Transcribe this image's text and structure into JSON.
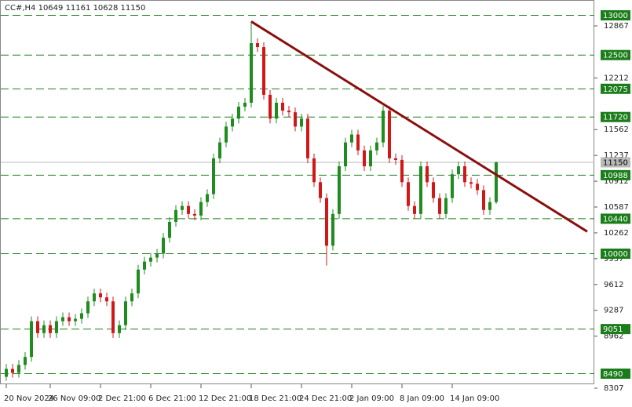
{
  "chart_data": {
    "type": "candlestick",
    "title": "CC#,H4 10649 11161 10628 11150",
    "categories": [
      "20 Nov 2024",
      null,
      null,
      null,
      null,
      null,
      null,
      "26 Nov 09:00",
      null,
      null,
      null,
      null,
      null,
      null,
      null,
      "2 Dec 21:00",
      null,
      null,
      null,
      null,
      null,
      null,
      null,
      "6 Dec 21:00",
      null,
      null,
      null,
      null,
      null,
      null,
      null,
      "12 Dec 21:00",
      null,
      null,
      null,
      null,
      null,
      null,
      null,
      "18 Dec 21:00",
      null,
      null,
      null,
      null,
      null,
      null,
      null,
      "24 Dec 21:00",
      null,
      null,
      null,
      null,
      null,
      null,
      null,
      "2 Jan 09:00",
      null,
      null,
      null,
      null,
      null,
      null,
      null,
      "8 Jan 09:00",
      null,
      null,
      null,
      null,
      null,
      null,
      null,
      "14 Jan 09:00",
      null,
      null,
      null,
      null,
      null,
      null,
      null
    ],
    "open": [
      8450,
      8550,
      8500,
      8600,
      8700,
      9150,
      9000,
      9100,
      9000,
      9150,
      9200,
      9150,
      9180,
      9250,
      9400,
      9500,
      9450,
      9400,
      9000,
      9100,
      9400,
      9500,
      9800,
      9900,
      9950,
      10000,
      10200,
      10400,
      10550,
      10600,
      10500,
      10480,
      10650,
      10750,
      11200,
      11400,
      11600,
      11700,
      11850,
      11900,
      12650,
      12600,
      12000,
      11700,
      11900,
      11800,
      11780,
      11600,
      11700,
      11200,
      10900,
      10700,
      10100,
      10500,
      11100,
      11400,
      11500,
      11300,
      11100,
      11300,
      11400,
      11800,
      11200,
      11180,
      10900,
      10600,
      10500,
      11100,
      10900,
      10700,
      10500,
      10700,
      11000,
      11100,
      10900,
      10880,
      10800,
      10550,
      10649
    ],
    "high": [
      8610,
      8610,
      8660,
      8760,
      9210,
      9210,
      9160,
      9160,
      9210,
      9260,
      9260,
      9240,
      9310,
      9460,
      9560,
      9560,
      9510,
      9460,
      9160,
      9460,
      9560,
      9860,
      9960,
      10010,
      10060,
      10260,
      10460,
      10610,
      10660,
      10660,
      10560,
      10710,
      10810,
      11260,
      11460,
      11660,
      11760,
      11910,
      11960,
      12922,
      12710,
      12660,
      12060,
      11960,
      11960,
      11860,
      11840,
      11760,
      11760,
      11260,
      10960,
      10760,
      10560,
      11160,
      11460,
      11560,
      11560,
      11360,
      11360,
      11460,
      11860,
      11860,
      11260,
      11240,
      10960,
      10660,
      11160,
      11160,
      10960,
      10760,
      10760,
      11060,
      11160,
      11160,
      10960,
      10940,
      10860,
      10710,
      11161
    ],
    "low": [
      8400,
      8440,
      8440,
      8540,
      8640,
      8940,
      8940,
      8940,
      8940,
      9090,
      9090,
      9090,
      9120,
      9190,
      9340,
      9390,
      9340,
      8940,
      8940,
      9040,
      9340,
      9440,
      9740,
      9840,
      9890,
      9940,
      10140,
      10340,
      10490,
      10440,
      10420,
      10420,
      10590,
      10690,
      11140,
      11340,
      11540,
      11640,
      11790,
      11840,
      12540,
      11940,
      11640,
      11640,
      11740,
      11720,
      11540,
      11540,
      11140,
      10840,
      10640,
      9850,
      10040,
      10440,
      11040,
      11340,
      11240,
      11040,
      11040,
      11240,
      11340,
      11140,
      11120,
      10840,
      10540,
      10440,
      10440,
      10840,
      10640,
      10440,
      10440,
      10640,
      10940,
      10840,
      10820,
      10740,
      10490,
      10490,
      10628
    ],
    "close": [
      8550,
      8500,
      8600,
      8700,
      9150,
      9000,
      9100,
      9000,
      9150,
      9200,
      9150,
      9180,
      9250,
      9400,
      9500,
      9450,
      9400,
      9000,
      9100,
      9400,
      9500,
      9800,
      9900,
      9950,
      10000,
      10200,
      10400,
      10550,
      10600,
      10500,
      10480,
      10650,
      10750,
      11200,
      11400,
      11600,
      11700,
      11850,
      11900,
      12650,
      12600,
      12000,
      11700,
      11900,
      11800,
      11780,
      11600,
      11700,
      11200,
      10900,
      10700,
      10100,
      10500,
      11100,
      11400,
      11500,
      11300,
      11100,
      11300,
      11400,
      11800,
      11200,
      11180,
      10900,
      10600,
      10500,
      11100,
      10900,
      10700,
      10500,
      10700,
      11000,
      11100,
      10900,
      10880,
      10800,
      10550,
      10649,
      11150
    ],
    "up_color": "#1e8c1e",
    "down_color": "#d01818",
    "ylim": [
      8307,
      13193
    ],
    "yticks": [
      12867,
      12212,
      11562,
      11237,
      10912,
      10587,
      10262,
      9937,
      9612,
      9287,
      8962,
      8307
    ],
    "levels": {
      "values": [
        13000,
        12500,
        12075,
        11720,
        10988,
        10440,
        10000,
        9051,
        8490
      ],
      "color": "#1a7d1a"
    },
    "current_price": {
      "value": 11150,
      "color": "#b9b9b9"
    },
    "trendline": {
      "x": [
        39,
        92.5
      ],
      "y": [
        12922,
        10278
      ],
      "color": "#8b0f0f"
    }
  }
}
